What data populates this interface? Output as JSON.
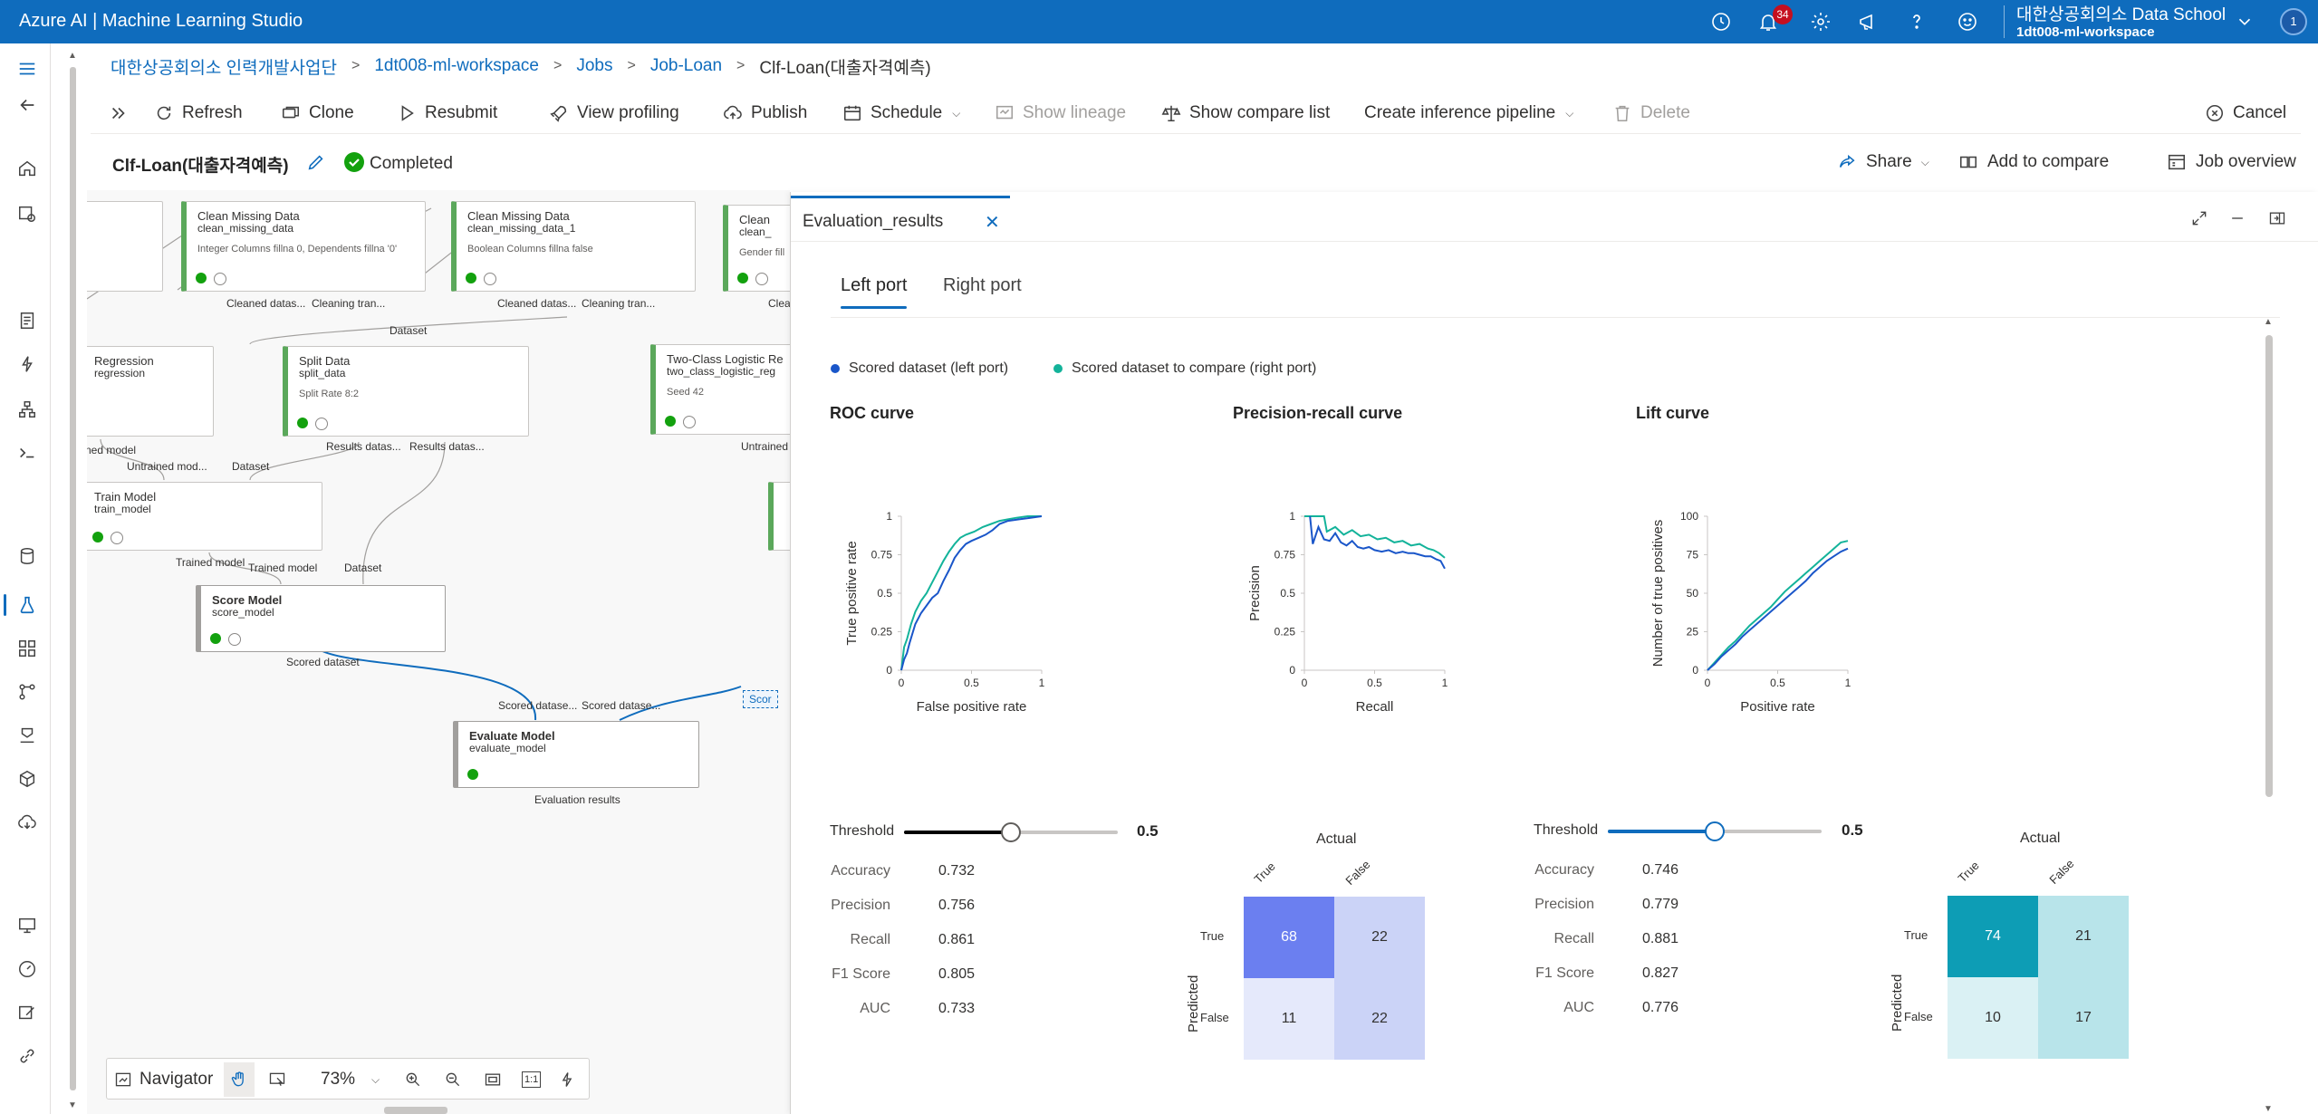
{
  "app": {
    "title": "Azure AI | Machine Learning Studio",
    "notifications_count": "34",
    "account_name": "대한상공회의소 Data School",
    "workspace": "1dt008-ml-workspace",
    "avatar_initial": "1"
  },
  "breadcrumb": [
    "대한상공회의소 인력개발사업단",
    "1dt008-ml-workspace",
    "Jobs",
    "Job-Loan",
    "Clf-Loan(대출자격예측)"
  ],
  "toolbar": {
    "refresh": "Refresh",
    "clone": "Clone",
    "resubmit": "Resubmit",
    "view_profiling": "View profiling",
    "publish": "Publish",
    "schedule": "Schedule",
    "show_lineage": "Show lineage",
    "show_compare_list": "Show compare list",
    "create_inference_pipeline": "Create inference pipeline",
    "delete": "Delete",
    "cancel": "Cancel"
  },
  "job": {
    "title": "Clf-Loan(대출자격예측)",
    "status": "Completed",
    "share": "Share",
    "add_to_compare": "Add to compare",
    "job_overview": "Job overview"
  },
  "canvas": {
    "nodes": [
      {
        "title": "Clean Missing Data",
        "sub": "clean_missing_data",
        "param": "Integer Columns fillna 0, Dependents fillna '0'"
      },
      {
        "title": "Clean Missing Data",
        "sub": "clean_missing_data_1",
        "param": "Boolean Columns fillna false"
      },
      {
        "title": "Clean",
        "sub": "clean_",
        "param": "Gender fill"
      },
      {
        "title": "Regression",
        "sub": "regression",
        "param": ""
      },
      {
        "title": "Split Data",
        "sub": "split_data",
        "param": "Split Rate 8:2"
      },
      {
        "title": "Two-Class Logistic Re",
        "sub": "two_class_logistic_reg",
        "param": "Seed 42"
      },
      {
        "title": "Train Model",
        "sub": "train_model",
        "param": ""
      },
      {
        "title": "Score Model",
        "sub": "score_model",
        "param": ""
      },
      {
        "title": "Evaluate Model",
        "sub": "evaluate_model",
        "param": ""
      }
    ],
    "ports": {
      "cleaned_dataset_1": "Cleaned datas...",
      "cleaning_tran_1": "Cleaning tran...",
      "cleaned_dataset_2": "Cleaned datas...",
      "cleaning_tran_2": "Cleaning tran...",
      "clean_cut": "Clean",
      "dataset_1": "Dataset",
      "ned_model": "ned model",
      "untrained_model_1": "Untrained mod...",
      "dataset_2": "Dataset",
      "results_dataset_1": "Results datas...",
      "results_dataset_2": "Results datas...",
      "untrained_cut": "Untrained",
      "trained_model_1": "Trained model",
      "trained_model_2": "Trained model",
      "dataset_3": "Dataset",
      "scored_dataset": "Scored dataset",
      "scored_datase_1": "Scored datase...",
      "scored_datase_2": "Scored datase...",
      "scor_cut": "Scor",
      "evaluation_results": "Evaluation results"
    },
    "navigator": {
      "label": "Navigator",
      "zoom": "73%",
      "fit_label": "1:1"
    }
  },
  "panel": {
    "tab_title": "Evaluation_results",
    "port_tabs": [
      "Left port",
      "Right port"
    ],
    "legend": [
      {
        "label": "Scored dataset (left port)",
        "color": "#1a56c9"
      },
      {
        "label": "Scored dataset to compare (right port)",
        "color": "#13b39a"
      }
    ]
  },
  "chart_data": [
    {
      "type": "line",
      "title": "ROC curve",
      "xlabel": "False positive rate",
      "ylabel": "True positive rate",
      "xlim": [
        0,
        1
      ],
      "ylim": [
        0,
        1
      ],
      "xticks": [
        "0",
        "0.5",
        "1"
      ],
      "yticks": [
        "0",
        "0.25",
        "0.5",
        "0.75",
        "1"
      ],
      "series": [
        {
          "name": "Scored dataset (left port)",
          "color": "#1a56c9",
          "points": [
            [
              0,
              0
            ],
            [
              0.02,
              0.07
            ],
            [
              0.04,
              0.11
            ],
            [
              0.06,
              0.18
            ],
            [
              0.08,
              0.24
            ],
            [
              0.1,
              0.3
            ],
            [
              0.14,
              0.37
            ],
            [
              0.18,
              0.42
            ],
            [
              0.22,
              0.47
            ],
            [
              0.26,
              0.5
            ],
            [
              0.3,
              0.58
            ],
            [
              0.34,
              0.65
            ],
            [
              0.38,
              0.73
            ],
            [
              0.42,
              0.78
            ],
            [
              0.46,
              0.82
            ],
            [
              0.5,
              0.84
            ],
            [
              0.55,
              0.86
            ],
            [
              0.6,
              0.88
            ],
            [
              0.65,
              0.91
            ],
            [
              0.7,
              0.95
            ],
            [
              0.76,
              0.97
            ],
            [
              0.84,
              0.98
            ],
            [
              0.92,
              0.99
            ],
            [
              1,
              1
            ]
          ]
        },
        {
          "name": "Scored dataset to compare (right port)",
          "color": "#13b39a",
          "points": [
            [
              0,
              0
            ],
            [
              0.02,
              0.15
            ],
            [
              0.04,
              0.2
            ],
            [
              0.07,
              0.3
            ],
            [
              0.1,
              0.38
            ],
            [
              0.14,
              0.45
            ],
            [
              0.18,
              0.5
            ],
            [
              0.22,
              0.57
            ],
            [
              0.26,
              0.64
            ],
            [
              0.3,
              0.71
            ],
            [
              0.34,
              0.77
            ],
            [
              0.38,
              0.82
            ],
            [
              0.42,
              0.86
            ],
            [
              0.46,
              0.88
            ],
            [
              0.52,
              0.9
            ],
            [
              0.58,
              0.93
            ],
            [
              0.64,
              0.95
            ],
            [
              0.7,
              0.97
            ],
            [
              0.76,
              0.98
            ],
            [
              0.82,
              0.99
            ],
            [
              0.9,
              1
            ],
            [
              1,
              1
            ]
          ]
        }
      ]
    },
    {
      "type": "line",
      "title": "Precision-recall curve",
      "xlabel": "Recall",
      "ylabel": "Precision",
      "xlim": [
        0,
        1
      ],
      "ylim": [
        0,
        1
      ],
      "xticks": [
        "0",
        "0.5",
        "1"
      ],
      "yticks": [
        "0",
        "0.25",
        "0.5",
        "0.75",
        "1"
      ],
      "series": [
        {
          "name": "Scored dataset (left port)",
          "color": "#1a56c9",
          "points": [
            [
              0.04,
              1
            ],
            [
              0.06,
              0.82
            ],
            [
              0.1,
              0.93
            ],
            [
              0.14,
              0.85
            ],
            [
              0.18,
              0.84
            ],
            [
              0.22,
              0.89
            ],
            [
              0.26,
              0.83
            ],
            [
              0.3,
              0.81
            ],
            [
              0.34,
              0.84
            ],
            [
              0.38,
              0.8
            ],
            [
              0.42,
              0.79
            ],
            [
              0.46,
              0.8
            ],
            [
              0.5,
              0.78
            ],
            [
              0.55,
              0.77
            ],
            [
              0.6,
              0.78
            ],
            [
              0.65,
              0.76
            ],
            [
              0.7,
              0.77
            ],
            [
              0.74,
              0.76
            ],
            [
              0.78,
              0.76
            ],
            [
              0.82,
              0.75
            ],
            [
              0.86,
              0.74
            ],
            [
              0.9,
              0.74
            ],
            [
              0.94,
              0.72
            ],
            [
              0.97,
              0.71
            ],
            [
              1,
              0.66
            ]
          ]
        },
        {
          "name": "Scored dataset to compare (right port)",
          "color": "#13b39a",
          "points": [
            [
              0,
              1
            ],
            [
              0.14,
              1
            ],
            [
              0.16,
              0.9
            ],
            [
              0.22,
              0.93
            ],
            [
              0.28,
              0.88
            ],
            [
              0.34,
              0.91
            ],
            [
              0.4,
              0.87
            ],
            [
              0.46,
              0.88
            ],
            [
              0.52,
              0.85
            ],
            [
              0.58,
              0.86
            ],
            [
              0.64,
              0.83
            ],
            [
              0.7,
              0.84
            ],
            [
              0.76,
              0.81
            ],
            [
              0.82,
              0.82
            ],
            [
              0.88,
              0.79
            ],
            [
              0.92,
              0.78
            ],
            [
              0.96,
              0.76
            ],
            [
              1,
              0.73
            ]
          ]
        }
      ]
    },
    {
      "type": "line",
      "title": "Lift curve",
      "xlabel": "Positive rate",
      "ylabel": "Number of true positives",
      "xlim": [
        0,
        1
      ],
      "ylim": [
        0,
        100
      ],
      "xticks": [
        "0",
        "0.5",
        "1"
      ],
      "yticks": [
        "0",
        "25",
        "50",
        "75",
        "100"
      ],
      "series": [
        {
          "name": "Scored dataset (left port)",
          "color": "#1a56c9",
          "points": [
            [
              0,
              0
            ],
            [
              0.05,
              4
            ],
            [
              0.1,
              9
            ],
            [
              0.15,
              13
            ],
            [
              0.2,
              17
            ],
            [
              0.25,
              22
            ],
            [
              0.3,
              26
            ],
            [
              0.35,
              30
            ],
            [
              0.4,
              34
            ],
            [
              0.45,
              38
            ],
            [
              0.5,
              42
            ],
            [
              0.55,
              46
            ],
            [
              0.6,
              50
            ],
            [
              0.65,
              54
            ],
            [
              0.7,
              58
            ],
            [
              0.75,
              63
            ],
            [
              0.8,
              67
            ],
            [
              0.85,
              71
            ],
            [
              0.9,
              74
            ],
            [
              0.95,
              77
            ],
            [
              1,
              79
            ]
          ]
        },
        {
          "name": "Scored dataset to compare (right port)",
          "color": "#13b39a",
          "points": [
            [
              0,
              0
            ],
            [
              0.05,
              5
            ],
            [
              0.1,
              10
            ],
            [
              0.15,
              15
            ],
            [
              0.2,
              19
            ],
            [
              0.25,
              24
            ],
            [
              0.3,
              29
            ],
            [
              0.35,
              33
            ],
            [
              0.4,
              37
            ],
            [
              0.45,
              41
            ],
            [
              0.5,
              46
            ],
            [
              0.55,
              51
            ],
            [
              0.6,
              55
            ],
            [
              0.65,
              59
            ],
            [
              0.7,
              63
            ],
            [
              0.75,
              67
            ],
            [
              0.8,
              71
            ],
            [
              0.85,
              75
            ],
            [
              0.9,
              79
            ],
            [
              0.95,
              83
            ],
            [
              1,
              84
            ]
          ]
        }
      ]
    },
    {
      "type": "table",
      "title": "Actual",
      "row_axis": "Predicted",
      "columns": [
        "True",
        "False"
      ],
      "rows": [
        "True",
        "False"
      ],
      "values": [
        [
          68,
          22
        ],
        [
          11,
          22
        ]
      ],
      "colors": [
        [
          "#6b7ff0",
          "#cbd3f7"
        ],
        [
          "#e5e9fb",
          "#cbd3f7"
        ]
      ]
    },
    {
      "type": "table",
      "title": "Actual",
      "row_axis": "Predicted",
      "columns": [
        "True",
        "False"
      ],
      "rows": [
        "True",
        "False"
      ],
      "values": [
        [
          74,
          21
        ],
        [
          10,
          17
        ]
      ],
      "colors": [
        [
          "#0d9db5",
          "#b8e4ea"
        ],
        [
          "#daf1f4",
          "#b8e4ea"
        ]
      ]
    }
  ],
  "left_metrics": {
    "threshold_label": "Threshold",
    "threshold": "0.5",
    "threshold_fraction": 0.5,
    "items": [
      {
        "name": "Accuracy",
        "value": "0.732"
      },
      {
        "name": "Precision",
        "value": "0.756"
      },
      {
        "name": "Recall",
        "value": "0.861"
      },
      {
        "name": "F1 Score",
        "value": "0.805"
      },
      {
        "name": "AUC",
        "value": "0.733"
      }
    ]
  },
  "right_metrics": {
    "threshold_label": "Threshold",
    "threshold": "0.5",
    "threshold_fraction": 0.5,
    "items": [
      {
        "name": "Accuracy",
        "value": "0.746"
      },
      {
        "name": "Precision",
        "value": "0.779"
      },
      {
        "name": "Recall",
        "value": "0.881"
      },
      {
        "name": "F1 Score",
        "value": "0.827"
      },
      {
        "name": "AUC",
        "value": "0.776"
      }
    ]
  }
}
